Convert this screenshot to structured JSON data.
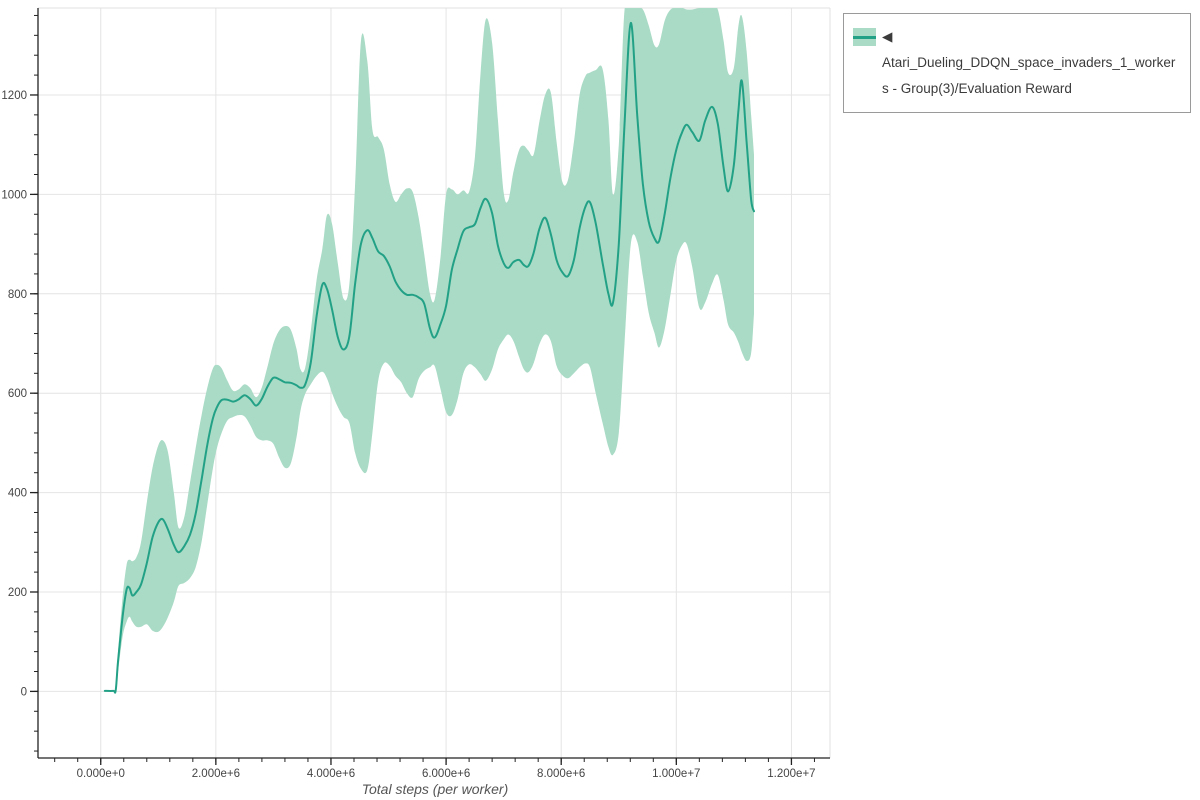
{
  "legend": {
    "label": "◀ Atari_Dueling_DDQN_space_invaders_1_workers - Group(3)/Evaluation Reward"
  },
  "axes": {
    "x_title": "Total steps (per worker)"
  },
  "colors": {
    "line": "#23a186",
    "band": "#a9dbc6",
    "grid": "#e4e4e4",
    "plot_border": "#e0e0e0",
    "axis": "#222222",
    "tick_label": "#444444",
    "axis_title": "#555555",
    "legend_border": "#9a9a9a"
  },
  "chart_data": {
    "type": "line",
    "title": "",
    "xlabel": "Total steps (per worker)",
    "ylabel": "",
    "grid": true,
    "legend_position": "top-right",
    "xlim": [
      -1090000,
      12670000
    ],
    "ylim": [
      -134,
      1375
    ],
    "x_major_ticks": [
      0,
      2000000,
      4000000,
      6000000,
      8000000,
      10000000,
      12000000
    ],
    "x_tick_labels": [
      "0.000e+0",
      "2.000e+6",
      "4.000e+6",
      "6.000e+6",
      "8.000e+6",
      "1.000e+7",
      "1.200e+7"
    ],
    "x_minor_step": 400000,
    "y_major_ticks": [
      0,
      200,
      400,
      600,
      800,
      1000,
      1200
    ],
    "y_tick_labels": [
      "0",
      "200",
      "400",
      "600",
      "800",
      "1000",
      "1200"
    ],
    "y_minor_step": 40,
    "series": [
      {
        "name": "◀ Atari_Dueling_DDQN_space_invaders_1_workers - Group(3)/Evaluation Reward",
        "x": [
          70000,
          220000,
          260000,
          300000,
          380000,
          450000,
          500000,
          550000,
          620000,
          700000,
          800000,
          900000,
          1000000,
          1080000,
          1170000,
          1270000,
          1350000,
          1450000,
          1550000,
          1650000,
          1750000,
          1850000,
          1950000,
          2020000,
          2100000,
          2200000,
          2300000,
          2400000,
          2500000,
          2600000,
          2700000,
          2800000,
          2900000,
          3000000,
          3100000,
          3200000,
          3300000,
          3400000,
          3470000,
          3550000,
          3650000,
          3750000,
          3850000,
          3930000,
          4020000,
          4120000,
          4220000,
          4320000,
          4420000,
          4520000,
          4630000,
          4720000,
          4820000,
          4920000,
          5020000,
          5120000,
          5220000,
          5320000,
          5420000,
          5520000,
          5620000,
          5720000,
          5800000,
          5900000,
          6000000,
          6100000,
          6200000,
          6300000,
          6400000,
          6500000,
          6600000,
          6690000,
          6800000,
          6900000,
          7000000,
          7080000,
          7170000,
          7270000,
          7350000,
          7430000,
          7520000,
          7620000,
          7720000,
          7820000,
          7920000,
          8020000,
          8120000,
          8220000,
          8320000,
          8420000,
          8500000,
          8600000,
          8720000,
          8820000,
          8900000,
          9000000,
          9100000,
          9210000,
          9320000,
          9420000,
          9520000,
          9620000,
          9700000,
          9800000,
          9900000,
          10000000,
          10100000,
          10180000,
          10280000,
          10400000,
          10500000,
          10620000,
          10720000,
          10820000,
          10900000,
          11000000,
          11080000,
          11140000,
          11220000,
          11300000,
          11350000
        ],
        "mean": [
          1,
          1,
          2,
          60,
          150,
          205,
          208,
          193,
          200,
          215,
          258,
          310,
          340,
          346,
          325,
          295,
          280,
          292,
          315,
          358,
          425,
          495,
          550,
          572,
          586,
          587,
          583,
          588,
          596,
          588,
          575,
          589,
          614,
          631,
          628,
          622,
          621,
          616,
          611,
          617,
          662,
          755,
          818,
          810,
          768,
          712,
          688,
          715,
          820,
          900,
          928,
          912,
          885,
          876,
          855,
          825,
          807,
          798,
          798,
          793,
          780,
          730,
          712,
          738,
          776,
          848,
          890,
          926,
          934,
          940,
          973,
          991,
          962,
          897,
          862,
          852,
          864,
          868,
          858,
          856,
          882,
          930,
          953,
          920,
          868,
          843,
          836,
          868,
          932,
          975,
          984,
          942,
          862,
          800,
          782,
          900,
          1140,
          1345,
          1160,
          1020,
          945,
          912,
          906,
          962,
          1035,
          1090,
          1125,
          1140,
          1125,
          1108,
          1148,
          1176,
          1142,
          1055,
          1006,
          1060,
          1170,
          1228,
          1108,
          990,
          966
        ],
        "lower": [
          1,
          1,
          2,
          40,
          110,
          140,
          150,
          140,
          130,
          130,
          135,
          122,
          120,
          130,
          150,
          180,
          212,
          218,
          228,
          250,
          300,
          375,
          450,
          490,
          520,
          545,
          552,
          556,
          553,
          535,
          512,
          505,
          505,
          498,
          470,
          450,
          458,
          510,
          565,
          598,
          618,
          635,
          643,
          630,
          600,
          572,
          552,
          540,
          480,
          448,
          445,
          520,
          625,
          660,
          655,
          635,
          622,
          600,
          592,
          628,
          645,
          652,
          655,
          610,
          562,
          556,
          588,
          640,
          658,
          652,
          638,
          625,
          648,
          688,
          708,
          718,
          705,
          672,
          648,
          642,
          660,
          698,
          718,
          705,
          655,
          636,
          630,
          640,
          652,
          660,
          652,
          600,
          540,
          492,
          476,
          520,
          700,
          900,
          905,
          835,
          762,
          722,
          692,
          730,
          800,
          868,
          898,
          900,
          852,
          772,
          782,
          820,
          838,
          788,
          738,
          722,
          702,
          682,
          665,
          680,
          760
        ],
        "upper": [
          1,
          1,
          2,
          80,
          190,
          255,
          265,
          262,
          270,
          300,
          380,
          450,
          495,
          505,
          480,
          400,
          330,
          350,
          420,
          490,
          555,
          610,
          650,
          657,
          650,
          625,
          605,
          608,
          618,
          610,
          592,
          612,
          655,
          700,
          726,
          735,
          728,
          690,
          648,
          650,
          725,
          828,
          890,
          958,
          940,
          860,
          790,
          820,
          1020,
          1308,
          1270,
          1130,
          1115,
          1090,
          1020,
          985,
          1000,
          1012,
          1005,
          955,
          880,
          800,
          788,
          870,
          1000,
          1010,
          1000,
          1008,
          1005,
          1075,
          1245,
          1352,
          1305,
          1150,
          1005,
          988,
          1045,
          1090,
          1098,
          1088,
          1080,
          1145,
          1200,
          1205,
          1105,
          1025,
          1030,
          1105,
          1200,
          1238,
          1245,
          1250,
          1252,
          1150,
          1000,
          1100,
          1370,
          1375,
          1375,
          1372,
          1340,
          1300,
          1302,
          1350,
          1372,
          1375,
          1375,
          1372,
          1372,
          1375,
          1375,
          1375,
          1372,
          1310,
          1245,
          1255,
          1340,
          1358,
          1290,
          1160,
          1080
        ]
      }
    ]
  }
}
